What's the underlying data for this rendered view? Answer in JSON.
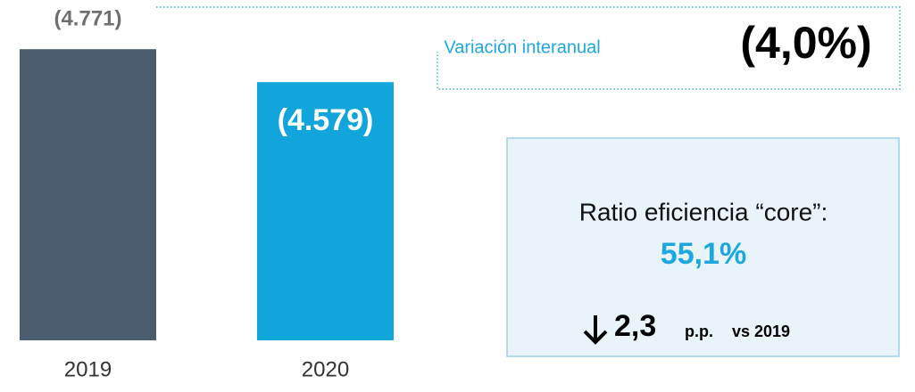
{
  "chart_data": {
    "type": "bar",
    "categories": [
      "2019",
      "2020"
    ],
    "values": [
      4771,
      4579
    ],
    "value_labels": [
      "(4.771)",
      "(4.579)"
    ],
    "colors": [
      "#4a5d6e",
      "#12a5dc"
    ],
    "ylim": [
      3074,
      4850
    ],
    "annotations": {
      "yoy_label": "Variación interanual",
      "yoy_value": "(4,0%)",
      "ratio_label": "Ratio eficiencia “core”:",
      "ratio_value": "55,1%",
      "change_value": "2,3",
      "change_unit": "p.p.",
      "change_ref": "vs 2019"
    }
  }
}
